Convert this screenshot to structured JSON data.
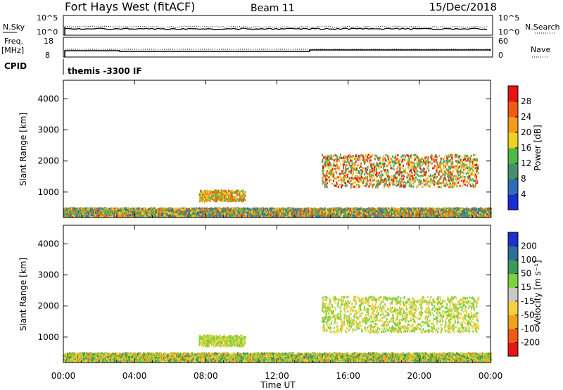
{
  "header": {
    "site": "Fort Hays West (fitACF)",
    "beam": "Beam 11",
    "date": "15/Dec/2018"
  },
  "top_panels": {
    "nsky_label": "N.Sky",
    "nsky_ticks": [
      "10^5",
      "10^0"
    ],
    "nsearch_label": "N.Search",
    "nsearch_ticks": [
      "10^5",
      "10^0"
    ],
    "freq_label": "Freq.",
    "freq_unit": "[MHz]",
    "freq_ticks": [
      "18",
      "8"
    ],
    "nave_label": "Nave",
    "nave_ticks": [
      "60",
      "0"
    ],
    "cpid_label": "CPID",
    "cpid_text": "themis -3300 IF"
  },
  "chart_data": [
    {
      "type": "heatmap",
      "name": "power",
      "ylabel": "Slant Range [km]",
      "xlabel": "",
      "xlim": [
        0,
        24
      ],
      "ylim": [
        180,
        4600
      ],
      "yticks": [
        "1000",
        "2000",
        "3000",
        "4000"
      ],
      "colorbar": {
        "label": "Power [dB]",
        "ticks": [
          "4",
          "8",
          "12",
          "16",
          "20",
          "24",
          "28"
        ],
        "range": [
          0,
          32
        ],
        "colors": [
          "#1b2bd6",
          "#2e6fb4",
          "#4a8e6e",
          "#4fb84a",
          "#f0d020",
          "#f49a1c",
          "#f05a14",
          "#e81414"
        ]
      },
      "scatter_regions": [
        {
          "t0": 0.0,
          "t1": 24.0,
          "r0": 200,
          "r1": 480,
          "levels": [
            4,
            8,
            12,
            16,
            20,
            24
          ]
        },
        {
          "t0": 7.6,
          "t1": 10.2,
          "r0": 700,
          "r1": 1050,
          "levels": [
            12,
            16,
            20,
            24
          ]
        },
        {
          "t0": 14.5,
          "t1": 23.3,
          "r0": 1150,
          "r1": 2200,
          "levels": [
            8,
            12,
            16,
            20,
            24,
            28
          ]
        }
      ]
    },
    {
      "type": "heatmap",
      "name": "velocity",
      "ylabel": "Slant Range [km]",
      "xlabel": "Time UT",
      "xlim": [
        0,
        24
      ],
      "ylim": [
        180,
        4600
      ],
      "yticks": [
        "1000",
        "2000",
        "3000",
        "4000"
      ],
      "xticks": [
        "00:00",
        "04:00",
        "08:00",
        "12:00",
        "16:00",
        "20:00",
        "00:00"
      ],
      "colorbar": {
        "label": "Velocity [m s⁻¹]",
        "ticks": [
          "200",
          "100",
          "50",
          "15",
          "-15",
          "-50",
          "-100",
          "-200"
        ],
        "colors": [
          "#1f2fc8",
          "#2d6f9a",
          "#3a9a5a",
          "#7fd040",
          "#c8c8c8",
          "#f4d040",
          "#f0a020",
          "#f05a14",
          "#e81414"
        ]
      },
      "scatter_regions": [
        {
          "t0": 0.0,
          "t1": 24.0,
          "r0": 200,
          "r1": 480,
          "levels": [
            50,
            15,
            -15,
            -50
          ]
        },
        {
          "t0": 7.6,
          "t1": 10.2,
          "r0": 700,
          "r1": 1050,
          "levels": [
            15,
            -15
          ]
        },
        {
          "t0": 14.5,
          "t1": 23.3,
          "r0": 1150,
          "r1": 2300,
          "levels": [
            15,
            -15
          ]
        }
      ]
    }
  ]
}
